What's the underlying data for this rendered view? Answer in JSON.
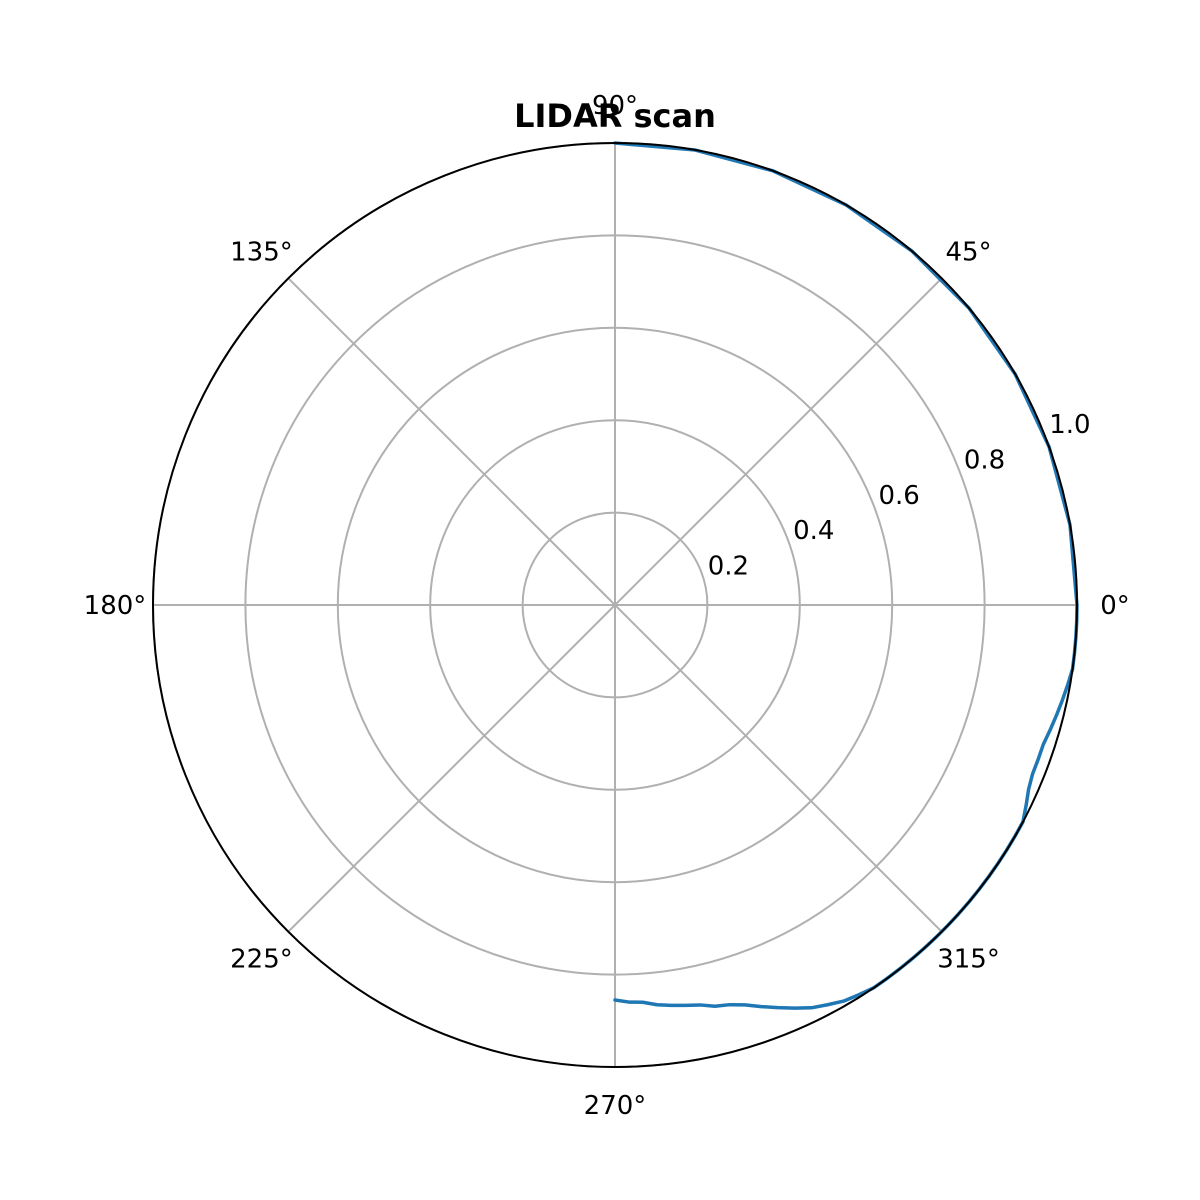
{
  "chart_data": {
    "type": "line",
    "projection": "polar",
    "title": "LIDAR scan",
    "theta_unit": "degrees",
    "theta_ticks": [
      "0°",
      "45°",
      "90°",
      "135°",
      "180°",
      "225°",
      "270°",
      "315°"
    ],
    "theta_tick_values": [
      0,
      45,
      90,
      135,
      180,
      225,
      270,
      315
    ],
    "r_ticks": [
      "0.2",
      "0.4",
      "0.6",
      "0.8",
      "1.0"
    ],
    "r_tick_values": [
      0.2,
      0.4,
      0.6,
      0.8,
      1.0
    ],
    "rlim": [
      0,
      1.0
    ],
    "r_label_angle_deg": 22.5,
    "grid": true,
    "series": [
      {
        "color": "#1f77b4",
        "theta": [
          270,
          272,
          274,
          276,
          278,
          280,
          282,
          284,
          286,
          288,
          290,
          292,
          294,
          296,
          298,
          300,
          302,
          304,
          306,
          308,
          310,
          312,
          314,
          316,
          318,
          320,
          322,
          324,
          326,
          328,
          330,
          332,
          334,
          336,
          338,
          340,
          342,
          344,
          346,
          348,
          350,
          352,
          354,
          356,
          358,
          0,
          10,
          20,
          30,
          40,
          50,
          60,
          70,
          80,
          90
        ],
        "r": [
          0.855,
          0.86,
          0.862,
          0.87,
          0.875,
          0.88,
          0.885,
          0.895,
          0.9,
          0.91,
          0.925,
          0.94,
          0.955,
          0.97,
          0.98,
          0.99,
          0.995,
          1.0,
          1.0,
          1.0,
          1.0,
          1.0,
          1.0,
          1.0,
          1.0,
          1.0,
          1.0,
          1.0,
          1.0,
          1.0,
          1.0,
          1.0,
          0.99,
          0.98,
          0.975,
          0.975,
          0.975,
          0.98,
          0.985,
          0.99,
          0.995,
          1.0,
          1.0,
          1.0,
          1.0,
          1.0,
          1.0,
          1.0,
          1.0,
          1.0,
          1.0,
          1.0,
          1.0,
          1.0,
          1.0
        ]
      }
    ]
  }
}
